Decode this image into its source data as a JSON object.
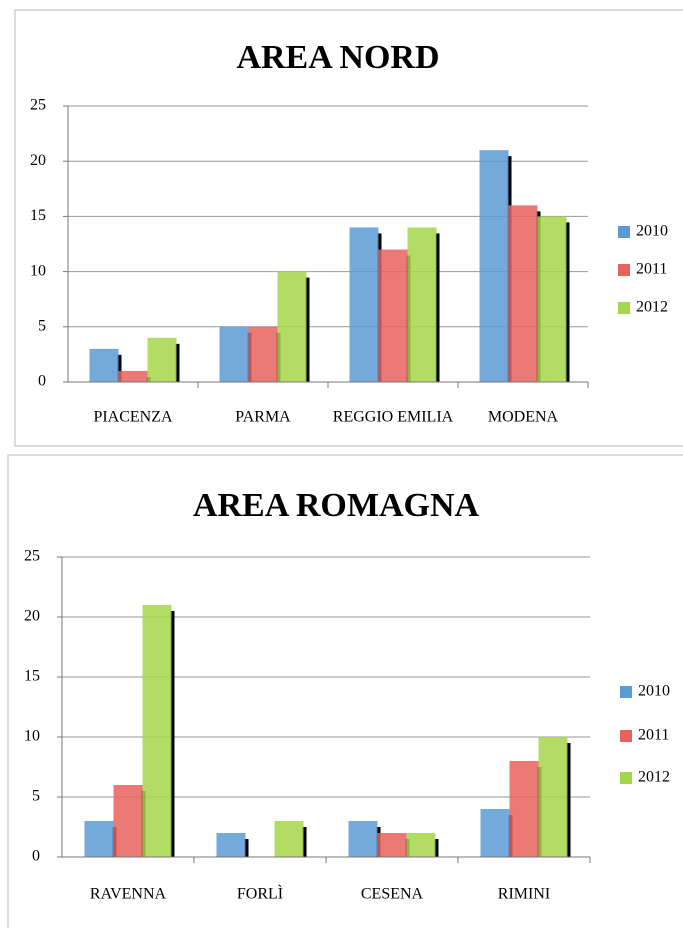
{
  "chart_data": [
    {
      "type": "bar",
      "title": "AREA NORD",
      "categories": [
        "PIACENZA",
        "PARMA",
        "REGGIO EMILIA",
        "MODENA"
      ],
      "series": [
        {
          "name": "2010",
          "color": "#5b9bd5",
          "values": [
            3,
            5,
            14,
            21
          ]
        },
        {
          "name": "2011",
          "color": "#e8625e",
          "values": [
            1,
            5,
            12,
            16
          ]
        },
        {
          "name": "2012",
          "color": "#a6d64a",
          "values": [
            4,
            10,
            14,
            15
          ]
        }
      ],
      "ylim": [
        0,
        25
      ],
      "yticks": [
        0,
        5,
        10,
        15,
        20,
        25
      ],
      "grid": true,
      "legend": "right"
    },
    {
      "type": "bar",
      "title": "AREA ROMAGNA",
      "categories": [
        "RAVENNA",
        "FORLÌ",
        "CESENA",
        "RIMINI"
      ],
      "series": [
        {
          "name": "2010",
          "color": "#5b9bd5",
          "values": [
            3,
            2,
            3,
            4
          ]
        },
        {
          "name": "2011",
          "color": "#e8625e",
          "values": [
            6,
            0,
            2,
            8
          ]
        },
        {
          "name": "2012",
          "color": "#a6d64a",
          "values": [
            21,
            3,
            2,
            10
          ]
        }
      ],
      "ylim": [
        0,
        25
      ],
      "yticks": [
        0,
        5,
        10,
        15,
        20,
        25
      ],
      "grid": true,
      "legend": "right"
    }
  ]
}
